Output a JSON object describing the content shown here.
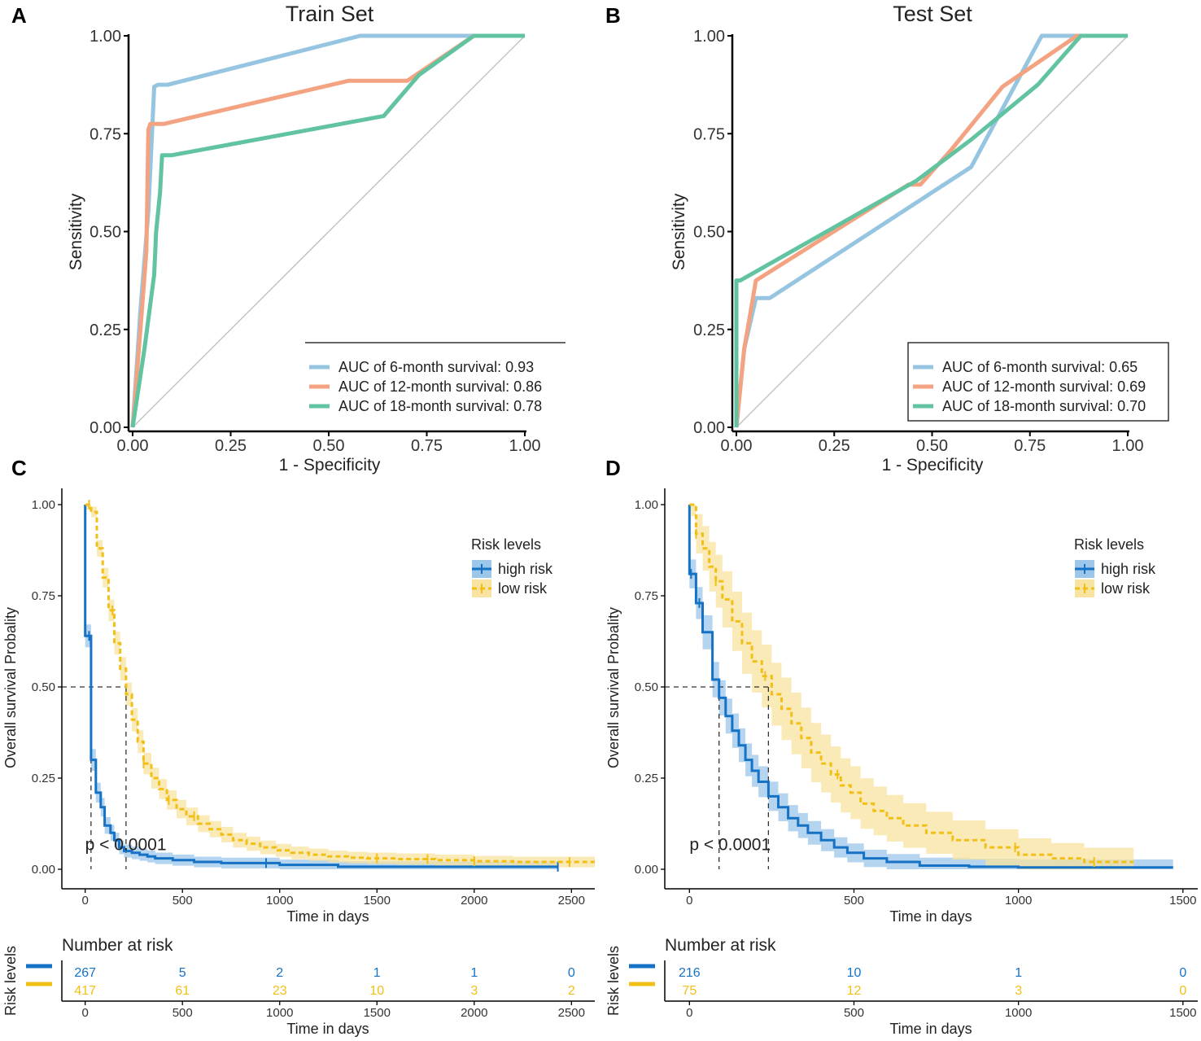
{
  "colors": {
    "roc_6": "#95c5e0",
    "roc_12": "#f4a382",
    "roc_18": "#62c3a0",
    "km_high": "#1572c4",
    "km_low": "#f2bf17",
    "km_high_band": "#9cc6ea",
    "km_low_band": "#f8e3a0",
    "diag": "#bdbdbd"
  },
  "chart_data": [
    {
      "id": "A",
      "type": "line",
      "panel_letter": "A",
      "title": "Train Set",
      "xlabel": "1 - Specificity",
      "ylabel": "Sensitivity",
      "xlim": [
        0,
        1
      ],
      "ylim": [
        0,
        1
      ],
      "xticks": [
        "0.00",
        "0.25",
        "0.50",
        "0.75",
        "1.00"
      ],
      "yticks": [
        "0.00",
        "0.25",
        "0.50",
        "0.75",
        "1.00"
      ],
      "legend": {
        "position": "bottom-right"
      },
      "reference_line": [
        [
          0,
          0
        ],
        [
          1,
          1
        ]
      ],
      "series": [
        {
          "name": "AUC of 6-month survival: 0.93",
          "color_key": "roc_6",
          "x": [
            0,
            0.02,
            0.04,
            0.055,
            0.065,
            0.09,
            0.58,
            0.87,
            1.0
          ],
          "y": [
            0,
            0.3,
            0.55,
            0.87,
            0.875,
            0.875,
            1.0,
            1.0,
            1.0
          ]
        },
        {
          "name": "AUC of 12-month survival: 0.86",
          "color_key": "roc_12",
          "x": [
            0,
            0.02,
            0.035,
            0.04,
            0.045,
            0.08,
            0.55,
            0.7,
            0.87,
            1.0
          ],
          "y": [
            0,
            0.25,
            0.45,
            0.76,
            0.775,
            0.775,
            0.885,
            0.885,
            1.0,
            1.0
          ]
        },
        {
          "name": "AUC of 18-month survival: 0.78",
          "color_key": "roc_18",
          "x": [
            0,
            0.03,
            0.055,
            0.06,
            0.07,
            0.075,
            0.1,
            0.64,
            0.73,
            0.87,
            1.0
          ],
          "y": [
            0,
            0.2,
            0.39,
            0.5,
            0.6,
            0.695,
            0.695,
            0.795,
            0.9,
            1.0,
            1.0
          ]
        }
      ]
    },
    {
      "id": "B",
      "type": "line",
      "panel_letter": "B",
      "title": "Test Set",
      "xlabel": "1 - Specificity",
      "ylabel": "Sensitivity",
      "xlim": [
        0,
        1
      ],
      "ylim": [
        0,
        1
      ],
      "xticks": [
        "0.00",
        "0.25",
        "0.50",
        "0.75",
        "1.00"
      ],
      "yticks": [
        "0.00",
        "0.25",
        "0.50",
        "0.75",
        "1.00"
      ],
      "legend": {
        "position": "bottom-right"
      },
      "reference_line": [
        [
          0,
          0
        ],
        [
          1,
          1
        ]
      ],
      "series": [
        {
          "name": "AUC of 6-month survival: 0.65",
          "color_key": "roc_6",
          "x": [
            0,
            0.01,
            0.02,
            0.05,
            0.085,
            0.6,
            0.78,
            0.87,
            1.0
          ],
          "y": [
            0,
            0.1,
            0.2,
            0.33,
            0.33,
            0.665,
            1.0,
            1.0,
            1.0
          ]
        },
        {
          "name": "AUC of 12-month survival: 0.69",
          "color_key": "roc_12",
          "x": [
            0,
            0.02,
            0.05,
            0.44,
            0.47,
            0.55,
            0.68,
            0.87,
            1.0
          ],
          "y": [
            0,
            0.2,
            0.375,
            0.62,
            0.62,
            0.71,
            0.87,
            1.0,
            1.0
          ]
        },
        {
          "name": "AUC of 18-month survival: 0.70",
          "color_key": "roc_18",
          "x": [
            0,
            0.0,
            0.01,
            0.46,
            0.6,
            0.77,
            0.88,
            1.0
          ],
          "y": [
            0,
            0.375,
            0.375,
            0.63,
            0.735,
            0.875,
            1.0,
            1.0
          ]
        }
      ]
    },
    {
      "id": "C",
      "type": "line",
      "panel_letter": "C",
      "title": "",
      "xlabel": "Time in days",
      "ylabel": "Overall survival Probality",
      "xlim": [
        -120,
        2620
      ],
      "ylim": [
        0,
        1
      ],
      "xticks": [
        "0",
        "500",
        "1000",
        "1500",
        "2000",
        "2500"
      ],
      "xtick_values": [
        0,
        500,
        1000,
        1500,
        2000,
        2500
      ],
      "yticks": [
        "0.00",
        "0.25",
        "0.50",
        "0.75",
        "1.00"
      ],
      "pvalue": "p < 0.0001",
      "pvalue_at": [
        0,
        0.075
      ],
      "medians": [
        30,
        210
      ],
      "legend": {
        "title": "Risk levels",
        "position": "top-right"
      },
      "series": [
        {
          "name": "high risk",
          "color_key": "km_high",
          "band_key": "km_high_band",
          "dashed": false,
          "x": [
            0,
            0,
            30,
            30,
            55,
            80,
            100,
            130,
            150,
            175,
            200,
            240,
            280,
            320,
            360,
            450,
            560,
            700,
            1000,
            1300,
            2430
          ],
          "y": [
            1.0,
            0.64,
            0.64,
            0.3,
            0.21,
            0.17,
            0.12,
            0.1,
            0.08,
            0.06,
            0.05,
            0.045,
            0.04,
            0.035,
            0.03,
            0.025,
            0.02,
            0.017,
            0.012,
            0.007,
            0.007
          ],
          "censor_x": [
            20,
            930,
            2430
          ]
        },
        {
          "name": "low risk",
          "color_key": "km_low",
          "band_key": "km_low_band",
          "dashed": true,
          "x": [
            0,
            30,
            60,
            90,
            120,
            150,
            180,
            210,
            240,
            270,
            300,
            340,
            380,
            420,
            470,
            520,
            580,
            640,
            700,
            760,
            830,
            900,
            980,
            1060,
            1150,
            1250,
            1350,
            1450,
            1600,
            1800,
            2000,
            2200,
            2620
          ],
          "y": [
            1.0,
            0.98,
            0.88,
            0.8,
            0.71,
            0.62,
            0.55,
            0.48,
            0.41,
            0.35,
            0.29,
            0.25,
            0.22,
            0.19,
            0.165,
            0.145,
            0.125,
            0.11,
            0.095,
            0.08,
            0.07,
            0.06,
            0.052,
            0.045,
            0.04,
            0.035,
            0.032,
            0.03,
            0.028,
            0.025,
            0.022,
            0.02,
            0.02
          ],
          "censor_x": [
            20,
            140,
            300,
            430,
            560,
            1500,
            1760,
            2000,
            2490
          ]
        }
      ],
      "risk_table": {
        "title": "Number at risk",
        "y_label": "Risk levels",
        "x_label": "Time in days",
        "times": [
          0,
          500,
          1000,
          1500,
          2000,
          2500
        ],
        "rows": [
          {
            "color_key": "km_high",
            "counts": [
              "267",
              "5",
              "2",
              "1",
              "1",
              "0"
            ]
          },
          {
            "color_key": "km_low",
            "counts": [
              "417",
              "61",
              "23",
              "10",
              "3",
              "2"
            ]
          }
        ]
      }
    },
    {
      "id": "D",
      "type": "line",
      "panel_letter": "D",
      "title": "",
      "xlabel": "Time in days",
      "ylabel": "Overall survival Probality",
      "xlim": [
        -75,
        1545
      ],
      "ylim": [
        0,
        1
      ],
      "xticks": [
        "0",
        "500",
        "1000",
        "1500"
      ],
      "xtick_values": [
        0,
        500,
        1000,
        1500
      ],
      "yticks": [
        "0.00",
        "0.25",
        "0.50",
        "0.75",
        "1.00"
      ],
      "pvalue": "p < 0.0001",
      "pvalue_at": [
        0,
        0.075
      ],
      "medians": [
        90,
        240
      ],
      "legend": {
        "title": "Risk levels",
        "position": "top-right"
      },
      "series": [
        {
          "name": "high risk",
          "color_key": "km_high",
          "band_key": "km_high_band",
          "dashed": false,
          "x": [
            0,
            0,
            20,
            40,
            70,
            90,
            110,
            130,
            150,
            170,
            190,
            210,
            240,
            270,
            300,
            330,
            360,
            400,
            440,
            480,
            530,
            600,
            700,
            850,
            1000,
            1200,
            1470
          ],
          "y": [
            1.0,
            0.81,
            0.73,
            0.65,
            0.52,
            0.47,
            0.42,
            0.38,
            0.34,
            0.3,
            0.27,
            0.24,
            0.2,
            0.17,
            0.14,
            0.12,
            0.1,
            0.08,
            0.06,
            0.045,
            0.03,
            0.02,
            0.01,
            0.007,
            0.005,
            0.005,
            0.005
          ],
          "censor_x": [
            5,
            30
          ]
        },
        {
          "name": "low risk",
          "color_key": "km_low",
          "band_key": "km_low_band",
          "dashed": true,
          "x": [
            0,
            20,
            40,
            60,
            80,
            100,
            130,
            160,
            190,
            220,
            250,
            280,
            310,
            340,
            370,
            400,
            430,
            460,
            490,
            520,
            560,
            600,
            650,
            720,
            800,
            900,
            1000,
            1100,
            1200,
            1350
          ],
          "y": [
            1.0,
            0.92,
            0.88,
            0.83,
            0.79,
            0.74,
            0.68,
            0.62,
            0.57,
            0.53,
            0.48,
            0.44,
            0.4,
            0.36,
            0.32,
            0.29,
            0.26,
            0.23,
            0.21,
            0.18,
            0.16,
            0.14,
            0.12,
            0.1,
            0.08,
            0.06,
            0.04,
            0.03,
            0.02,
            0.02
          ],
          "censor_x": [
            20,
            80,
            230,
            450,
            990,
            1230
          ]
        }
      ],
      "risk_table": {
        "title": "Number at risk",
        "y_label": "Risk levels",
        "x_label": "Time in days",
        "times": [
          0,
          500,
          1000,
          1500
        ],
        "rows": [
          {
            "color_key": "km_high",
            "counts": [
              "216",
              "10",
              "1",
              "0"
            ]
          },
          {
            "color_key": "km_low",
            "counts": [
              "75",
              "12",
              "3",
              "0"
            ]
          }
        ]
      }
    }
  ]
}
